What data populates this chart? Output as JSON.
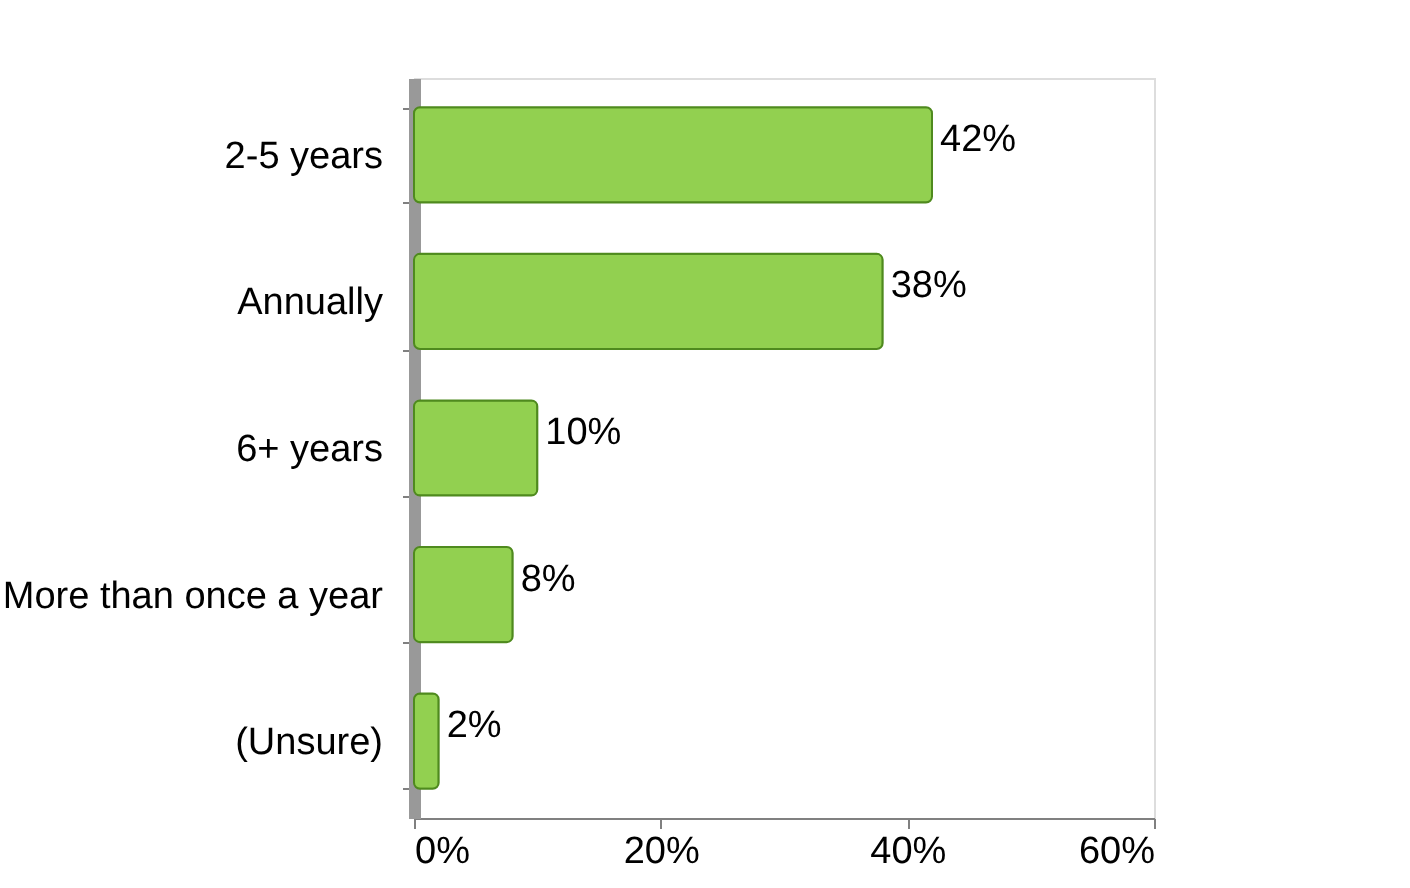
{
  "chart_data": {
    "type": "bar",
    "orientation": "horizontal",
    "categories": [
      "2-5 years",
      "Annually",
      "6+ years",
      "More than once a year",
      "(Unsure)"
    ],
    "values": [
      42,
      38,
      10,
      8,
      2
    ],
    "color": "#92d050",
    "value_labels": [
      "42%",
      "38%",
      "10%",
      "8%",
      "2%"
    ],
    "xlim": [
      0,
      60
    ],
    "xticks": [
      {
        "value": 0,
        "label": "0%"
      },
      {
        "value": 20,
        "label": "20%"
      },
      {
        "value": 40,
        "label": "40%"
      },
      {
        "value": 60,
        "label": "60%"
      }
    ],
    "grid": false
  }
}
